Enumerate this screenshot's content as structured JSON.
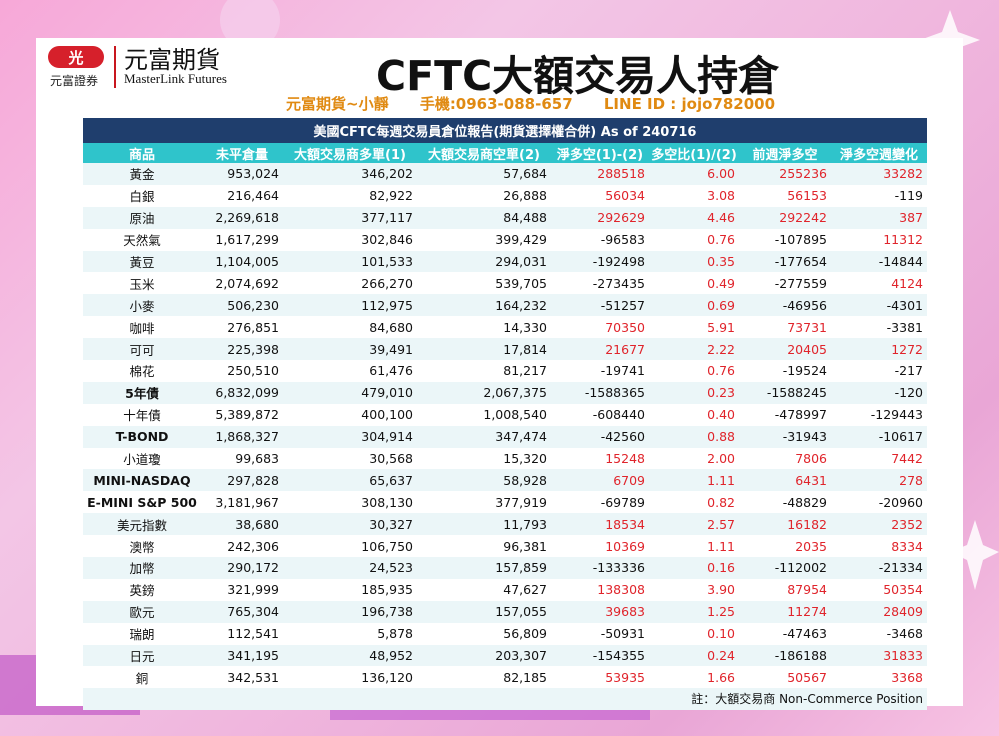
{
  "header": {
    "logo_mark": "光",
    "logo_sub": "元富證券",
    "logo_cn": "元富期貨",
    "logo_en": "MasterLink Futures",
    "title": "CFTC大額交易人持倉",
    "contact_name": "元富期貨~小靜",
    "contact_phone": "手機:0963-088-657",
    "contact_line": "LINE ID : jojo782000"
  },
  "report": {
    "title": "美國CFTC每週交易員倉位報告(期貨選擇權合併) As of  240716",
    "columns": [
      "商品",
      "未平倉量",
      "大額交易商多單(1)",
      "大額交易商空單(2)",
      "淨多空(1)-(2)",
      "多空比(1)/(2)",
      "前週淨多空",
      "淨多空週變化"
    ],
    "rows": [
      {
        "name": "黃金",
        "oi": "953,024",
        "long": "346,202",
        "short": "57,684",
        "net": "288518",
        "ratio": "6.00",
        "prev": "255236",
        "chg": "33282"
      },
      {
        "name": "白銀",
        "oi": "216,464",
        "long": "82,922",
        "short": "26,888",
        "net": "56034",
        "ratio": "3.08",
        "prev": "56153",
        "chg": "-119"
      },
      {
        "name": "原油",
        "oi": "2,269,618",
        "long": "377,117",
        "short": "84,488",
        "net": "292629",
        "ratio": "4.46",
        "prev": "292242",
        "chg": "387"
      },
      {
        "name": "天然氣",
        "oi": "1,617,299",
        "long": "302,846",
        "short": "399,429",
        "net": "-96583",
        "ratio": "0.76",
        "prev": "-107895",
        "chg": "11312"
      },
      {
        "name": "黃豆",
        "oi": "1,104,005",
        "long": "101,533",
        "short": "294,031",
        "net": "-192498",
        "ratio": "0.35",
        "prev": "-177654",
        "chg": "-14844"
      },
      {
        "name": "玉米",
        "oi": "2,074,692",
        "long": "266,270",
        "short": "539,705",
        "net": "-273435",
        "ratio": "0.49",
        "prev": "-277559",
        "chg": "4124"
      },
      {
        "name": "小麥",
        "oi": "506,230",
        "long": "112,975",
        "short": "164,232",
        "net": "-51257",
        "ratio": "0.69",
        "prev": "-46956",
        "chg": "-4301"
      },
      {
        "name": "咖啡",
        "oi": "276,851",
        "long": "84,680",
        "short": "14,330",
        "net": "70350",
        "ratio": "5.91",
        "prev": "73731",
        "chg": "-3381"
      },
      {
        "name": "可可",
        "oi": "225,398",
        "long": "39,491",
        "short": "17,814",
        "net": "21677",
        "ratio": "2.22",
        "prev": "20405",
        "chg": "1272"
      },
      {
        "name": "棉花",
        "oi": "250,510",
        "long": "61,476",
        "short": "81,217",
        "net": "-19741",
        "ratio": "0.76",
        "prev": "-19524",
        "chg": "-217"
      },
      {
        "name": "5年債",
        "oi": "6,832,099",
        "long": "479,010",
        "short": "2,067,375",
        "net": "-1588365",
        "ratio": "0.23",
        "prev": "-1588245",
        "chg": "-120"
      },
      {
        "name": "十年債",
        "oi": "5,389,872",
        "long": "400,100",
        "short": "1,008,540",
        "net": "-608440",
        "ratio": "0.40",
        "prev": "-478997",
        "chg": "-129443"
      },
      {
        "name": "T-BOND",
        "oi": "1,868,327",
        "long": "304,914",
        "short": "347,474",
        "net": "-42560",
        "ratio": "0.88",
        "prev": "-31943",
        "chg": "-10617"
      },
      {
        "name": "小道瓊",
        "oi": "99,683",
        "long": "30,568",
        "short": "15,320",
        "net": "15248",
        "ratio": "2.00",
        "prev": "7806",
        "chg": "7442"
      },
      {
        "name": "MINI-NASDAQ",
        "oi": "297,828",
        "long": "65,637",
        "short": "58,928",
        "net": "6709",
        "ratio": "1.11",
        "prev": "6431",
        "chg": "278"
      },
      {
        "name": "E-MINI S&P 500",
        "oi": "3,181,967",
        "long": "308,130",
        "short": "377,919",
        "net": "-69789",
        "ratio": "0.82",
        "prev": "-48829",
        "chg": "-20960"
      },
      {
        "name": "美元指數",
        "oi": "38,680",
        "long": "30,327",
        "short": "11,793",
        "net": "18534",
        "ratio": "2.57",
        "prev": "16182",
        "chg": "2352"
      },
      {
        "name": "澳幣",
        "oi": "242,306",
        "long": "106,750",
        "short": "96,381",
        "net": "10369",
        "ratio": "1.11",
        "prev": "2035",
        "chg": "8334"
      },
      {
        "name": "加幣",
        "oi": "290,172",
        "long": "24,523",
        "short": "157,859",
        "net": "-133336",
        "ratio": "0.16",
        "prev": "-112002",
        "chg": "-21334"
      },
      {
        "name": "英鎊",
        "oi": "321,999",
        "long": "185,935",
        "short": "47,627",
        "net": "138308",
        "ratio": "3.90",
        "prev": "87954",
        "chg": "50354"
      },
      {
        "name": "歐元",
        "oi": "765,304",
        "long": "196,738",
        "short": "157,055",
        "net": "39683",
        "ratio": "1.25",
        "prev": "11274",
        "chg": "28409"
      },
      {
        "name": "瑞朗",
        "oi": "112,541",
        "long": "5,878",
        "short": "56,809",
        "net": "-50931",
        "ratio": "0.10",
        "prev": "-47463",
        "chg": "-3468"
      },
      {
        "name": "日元",
        "oi": "341,195",
        "long": "48,952",
        "short": "203,307",
        "net": "-154355",
        "ratio": "0.24",
        "prev": "-186188",
        "chg": "31833"
      },
      {
        "name": "銅",
        "oi": "342,531",
        "long": "136,120",
        "short": "82,185",
        "net": "53935",
        "ratio": "1.66",
        "prev": "50567",
        "chg": "3368"
      }
    ],
    "note": "註：大額交易商 Non-Commerce Position"
  },
  "colors": {
    "positive": "#e0242b",
    "header_bg": "#1f3e6d",
    "column_bg": "#2fc4cb",
    "contact": "#e08a12"
  }
}
